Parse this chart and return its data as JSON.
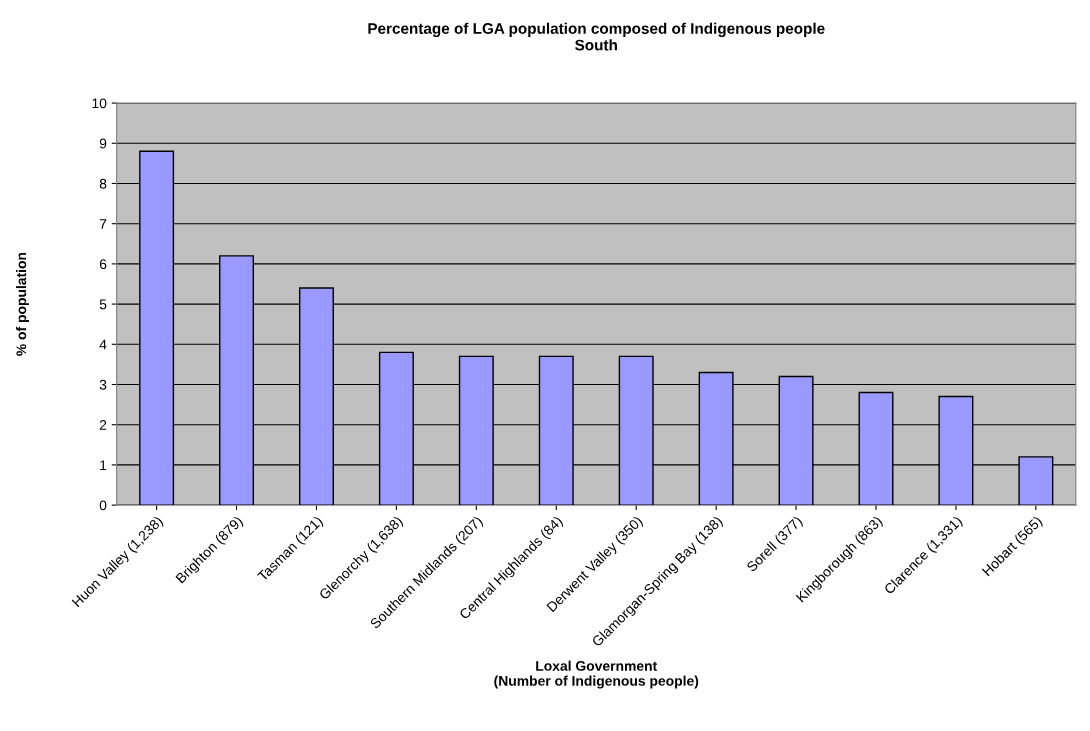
{
  "chart_data": {
    "type": "bar",
    "title": "Percentage of LGA population composed of Indigenous people\nSouth",
    "xlabel": "Loxal Government\n(Number of Indigenous people)",
    "ylabel": "% of population",
    "categories": [
      "Huon Valley (1,238)",
      "Brighton (879)",
      "Tasman (121)",
      "Glenorchy (1,638)",
      "Southern Midlands (207)",
      "Central Highlands (84)",
      "Derwent Valley (350)",
      "Glamorgan-Spring Bay (138)",
      "Sorell (377)",
      "Kingborough (863)",
      "Clarence (1,331)",
      "Hobart (565)"
    ],
    "values": [
      8.8,
      6.2,
      5.4,
      3.8,
      3.7,
      3.7,
      3.7,
      3.3,
      3.2,
      2.8,
      2.7,
      1.2
    ],
    "color": "#9999ff",
    "ylim": [
      0,
      10
    ],
    "yticks": [
      0,
      1,
      2,
      3,
      4,
      5,
      6,
      7,
      8,
      9,
      10
    ],
    "grid": "y",
    "legend": false
  }
}
